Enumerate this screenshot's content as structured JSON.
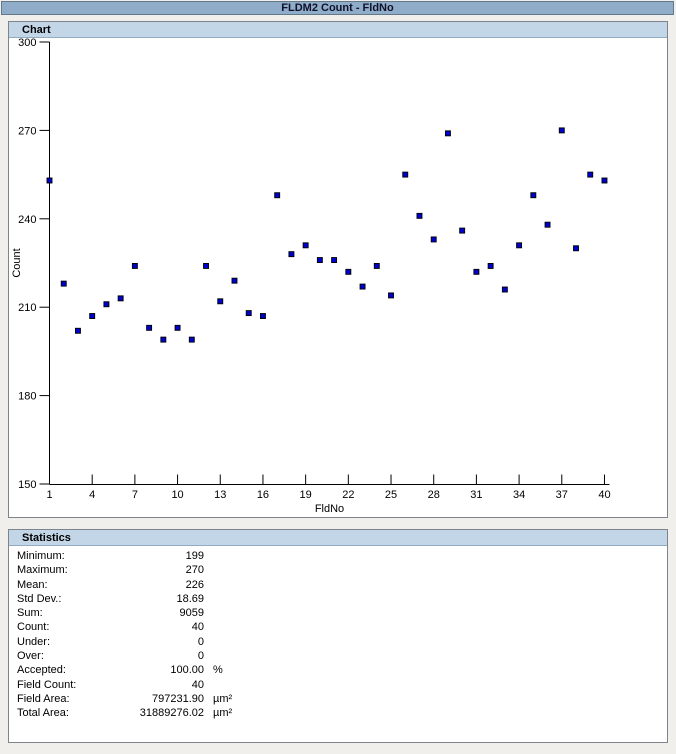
{
  "window": {
    "title": "FLDM2 Count - FldNo"
  },
  "chart_panel": {
    "header": "Chart"
  },
  "stats_panel": {
    "header": "Statistics",
    "rows": [
      {
        "label": "Minimum:",
        "value": "199",
        "unit": ""
      },
      {
        "label": "Maximum:",
        "value": "270",
        "unit": ""
      },
      {
        "label": "Mean:",
        "value": "226",
        "unit": ""
      },
      {
        "label": "Std Dev.:",
        "value": "18.69",
        "unit": ""
      },
      {
        "label": "Sum:",
        "value": "9059",
        "unit": ""
      },
      {
        "label": "Count:",
        "value": "40",
        "unit": ""
      },
      {
        "label": "Under:",
        "value": "0",
        "unit": ""
      },
      {
        "label": "Over:",
        "value": "0",
        "unit": ""
      },
      {
        "label": "Accepted:",
        "value": "100.00",
        "unit": "%"
      },
      {
        "label": "Field Count:",
        "value": "40",
        "unit": ""
      },
      {
        "label": "Field Area:",
        "value": "797231.90",
        "unit": "µm²"
      },
      {
        "label": "Total Area:",
        "value": "31889276.02",
        "unit": "µm²"
      }
    ]
  },
  "chart_data": {
    "type": "scatter",
    "title": "FLDM2 Count - FldNo",
    "xlabel": "FldNo",
    "ylabel": "Count",
    "xlim": [
      1,
      40
    ],
    "ylim": [
      150,
      300
    ],
    "x_ticks": [
      1,
      4,
      7,
      10,
      13,
      16,
      19,
      22,
      25,
      28,
      31,
      34,
      37,
      40
    ],
    "y_ticks": [
      300,
      270,
      240,
      210,
      180,
      150
    ],
    "grid": false,
    "legend": "none",
    "marker": "square",
    "marker_color": "#0000CC",
    "marker_edge_color": "#000000",
    "x": [
      1,
      2,
      3,
      4,
      5,
      6,
      7,
      8,
      9,
      10,
      11,
      12,
      13,
      14,
      15,
      16,
      17,
      18,
      19,
      20,
      21,
      22,
      23,
      24,
      25,
      26,
      27,
      28,
      29,
      30,
      31,
      32,
      33,
      34,
      35,
      36,
      37,
      38,
      39,
      40
    ],
    "y": [
      253,
      218,
      202,
      207,
      211,
      213,
      224,
      203,
      199,
      203,
      199,
      224,
      212,
      219,
      208,
      207,
      248,
      228,
      231,
      226,
      226,
      222,
      217,
      224,
      214,
      255,
      241,
      233,
      269,
      236,
      222,
      224,
      216,
      231,
      248,
      238,
      270,
      230,
      255,
      253
    ]
  }
}
